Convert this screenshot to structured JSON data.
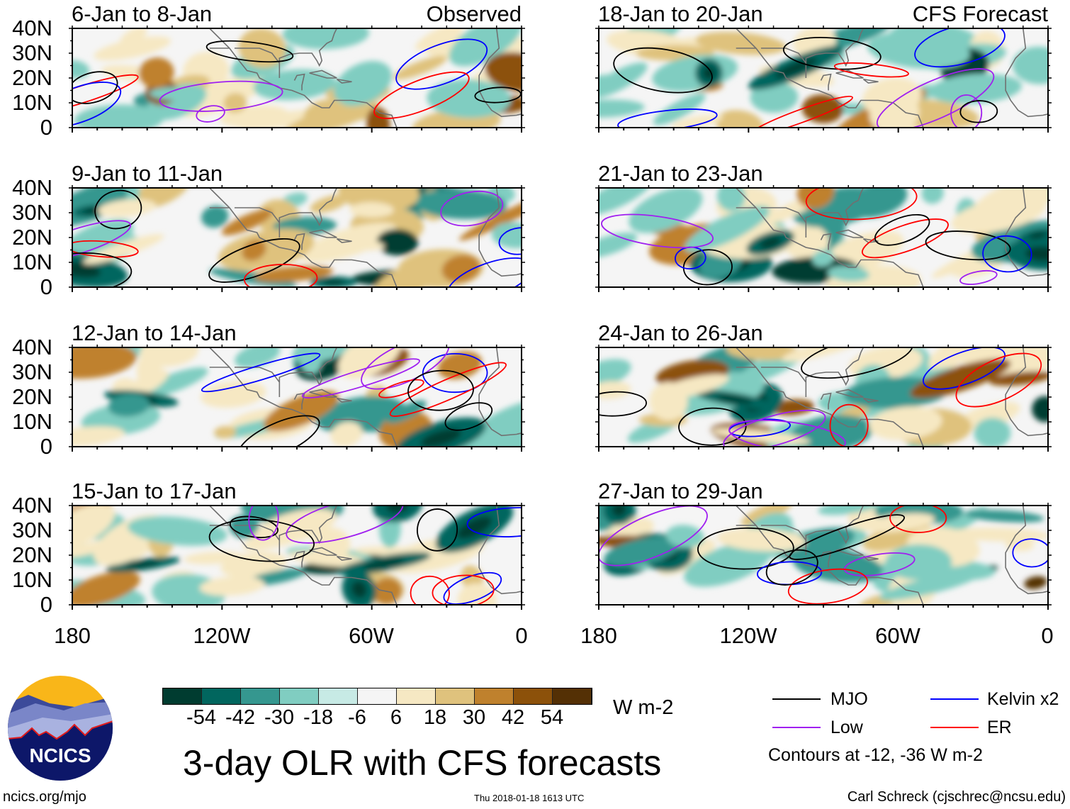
{
  "header": {
    "observed_label": "Observed",
    "forecast_label": "CFS Forecast"
  },
  "panels_left": [
    {
      "title": "6-Jan to 8-Jan",
      "type": "observed"
    },
    {
      "title": "9-Jan to 11-Jan",
      "type": "observed"
    },
    {
      "title": "12-Jan to 14-Jan",
      "type": "observed"
    },
    {
      "title": "15-Jan to 17-Jan",
      "type": "observed"
    }
  ],
  "panels_right": [
    {
      "title": "18-Jan to 20-Jan",
      "type": "forecast"
    },
    {
      "title": "21-Jan to 23-Jan",
      "type": "forecast"
    },
    {
      "title": "24-Jan to 26-Jan",
      "type": "forecast"
    },
    {
      "title": "27-Jan to 29-Jan",
      "type": "forecast"
    }
  ],
  "y_ticks": [
    "40N",
    "30N",
    "20N",
    "10N",
    "0"
  ],
  "x_ticks": [
    "180",
    "120W",
    "60W",
    "0"
  ],
  "colorbar": {
    "colors": [
      "#003c30",
      "#01665e",
      "#35978f",
      "#80cdc1",
      "#c7eae5",
      "#f5f5f5",
      "#f6e8c3",
      "#dfc27d",
      "#bf812d",
      "#8c510a",
      "#543005"
    ],
    "labels": [
      "-54",
      "-42",
      "-30",
      "-18",
      "-6",
      "6",
      "18",
      "30",
      "42",
      "54"
    ],
    "units": "W m-2"
  },
  "legend": {
    "items": [
      {
        "label": "MJO",
        "color": "#000000"
      },
      {
        "label": "Kelvin x2",
        "color": "#0000ff"
      },
      {
        "label": "Low",
        "color": "#a020f0"
      },
      {
        "label": "ER",
        "color": "#ff0000"
      }
    ],
    "note": "Contours at -12, -36 W m-2"
  },
  "title": "3-day OLR with CFS forecasts",
  "logo": {
    "text": "NCICS"
  },
  "footer": {
    "url": "ncics.org/mjo",
    "timestamp": "Thu 2018-01-18 1613 UTC",
    "credit": "Carl Schreck (cjschrec@ncsu.edu)"
  }
}
